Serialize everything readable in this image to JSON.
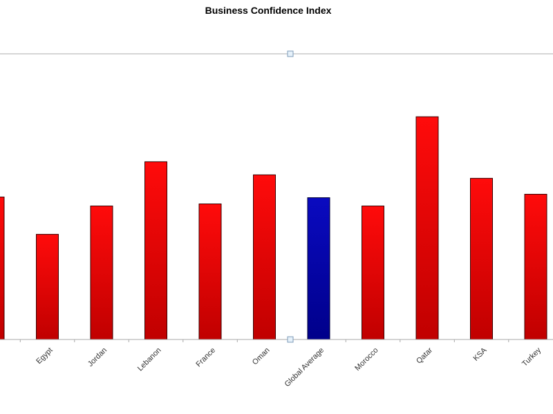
{
  "chart_data": {
    "type": "bar",
    "title": "Business Confidence Index",
    "xlabel": "",
    "ylabel": "",
    "categories": [
      "",
      "Egypt",
      "Jordan",
      "Lebanon",
      "France",
      "Oman",
      "Global Average",
      "Morocco",
      "Qatar",
      "KSA",
      "Turkey"
    ],
    "values": [
      206,
      152,
      193,
      257,
      196,
      238,
      205,
      193,
      322,
      233,
      210
    ],
    "highlight_category": "Global Average",
    "ylim": [
      0,
      413
    ],
    "grid": false,
    "legend": "none",
    "y_axis_labels_visible": false
  },
  "colors": {
    "bar_primary": "#e00000",
    "bar_primary_light": "#ff0b0b",
    "bar_primary_dark": "#c00000",
    "bar_highlight": "#0000a8",
    "bar_highlight_light": "#0a0ac0",
    "bar_highlight_dark": "#00008a",
    "bar_outline": "#3a0000",
    "axis": "#a8a8a8",
    "top_line": "#c8c8c8",
    "handle_fill": "#e6f1fa",
    "handle_stroke": "#7d9bb8"
  }
}
